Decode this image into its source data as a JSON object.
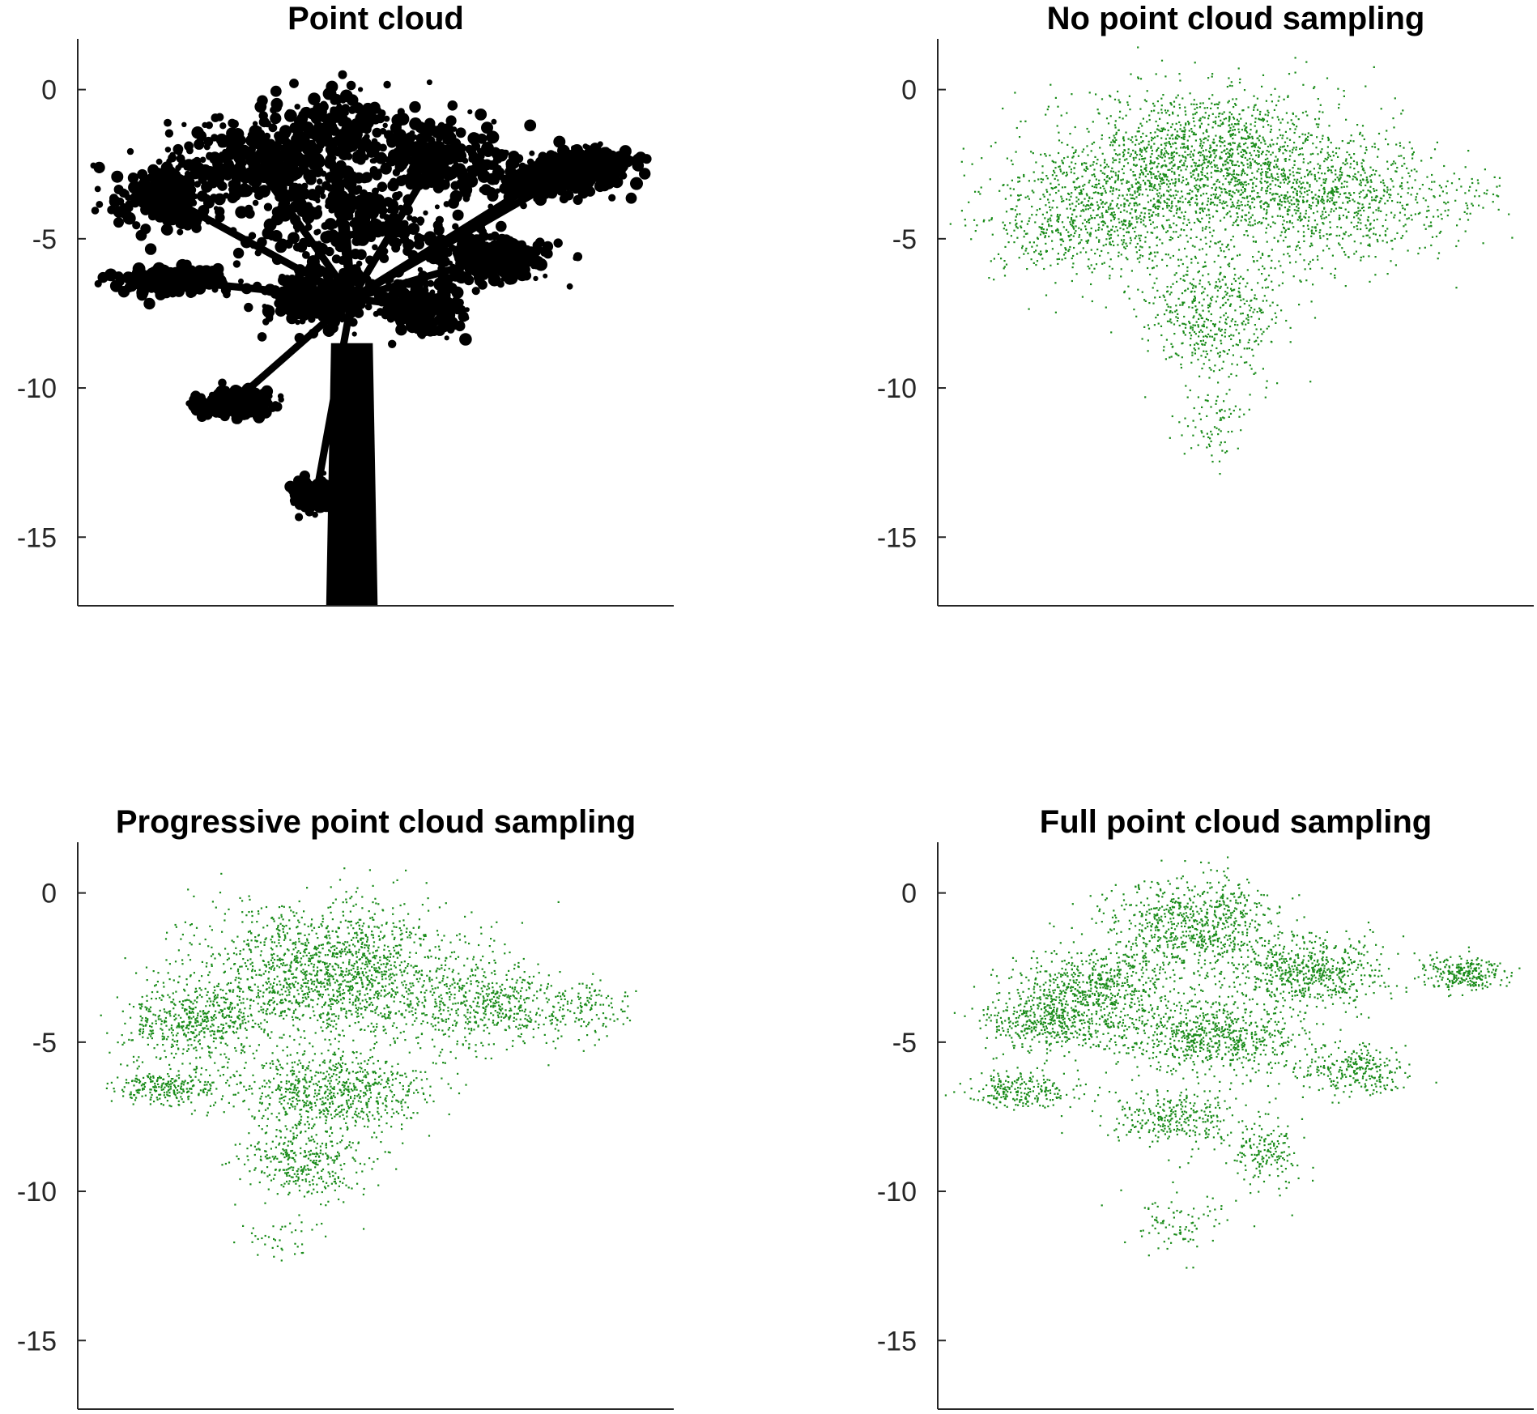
{
  "chart_data": [
    {
      "type": "scatter",
      "title": "Point cloud",
      "xlabel": "",
      "ylabel": "",
      "ylim": [
        -17.3,
        1.7
      ],
      "yticks": [
        0,
        -5,
        -10,
        -15
      ],
      "yticklabels": [
        "0",
        "-5",
        "-10",
        "-15"
      ],
      "xticks": [],
      "grid": false,
      "legend": "none",
      "marker_color": "#000000",
      "description_kind": "dense point cloud of a tree silhouette",
      "series": [
        {
          "shape": "tree",
          "trunk": {
            "x_center": 0.46,
            "x_halfwidth": 0.035,
            "y_top": -8.5,
            "y_bottom": -17.3
          },
          "crown_clusters": [
            {
              "cx": 0.42,
              "cy": -1.5,
              "rx": 0.14,
              "ry": 1.6
            },
            {
              "cx": 0.3,
              "cy": -2.5,
              "rx": 0.14,
              "ry": 1.4
            },
            {
              "cx": 0.6,
              "cy": -2.3,
              "rx": 0.13,
              "ry": 1.4
            },
            {
              "cx": 0.15,
              "cy": -3.6,
              "rx": 0.1,
              "ry": 1.2
            },
            {
              "cx": 0.78,
              "cy": -3.0,
              "rx": 0.12,
              "ry": 0.7
            },
            {
              "cx": 0.86,
              "cy": -2.4,
              "rx": 0.07,
              "ry": 0.5
            },
            {
              "cx": 0.45,
              "cy": -4.5,
              "rx": 0.18,
              "ry": 1.6
            },
            {
              "cx": 0.16,
              "cy": -6.4,
              "rx": 0.09,
              "ry": 0.5
            },
            {
              "cx": 0.7,
              "cy": -5.6,
              "rx": 0.1,
              "ry": 0.8
            },
            {
              "cx": 0.58,
              "cy": -7.3,
              "rx": 0.08,
              "ry": 1.0
            },
            {
              "cx": 0.4,
              "cy": -7.0,
              "rx": 0.1,
              "ry": 1.1
            },
            {
              "cx": 0.26,
              "cy": -10.5,
              "rx": 0.07,
              "ry": 0.5
            },
            {
              "cx": 0.4,
              "cy": -13.6,
              "rx": 0.04,
              "ry": 0.5
            }
          ]
        }
      ]
    },
    {
      "type": "scatter",
      "title": "No point cloud sampling",
      "xlabel": "",
      "ylabel": "",
      "ylim": [
        -17.3,
        1.7
      ],
      "yticks": [
        0,
        -5,
        -10,
        -15
      ],
      "yticklabels": [
        "0",
        "-5",
        "-10",
        "-15"
      ],
      "xticks": [],
      "grid": false,
      "legend": "none",
      "marker_color": "#1a8c1a",
      "series": [
        {
          "shape": "sparse",
          "clusters": [
            {
              "cx": 0.45,
              "cy": -2.5,
              "rx": 0.24,
              "ry": 2.6,
              "n": 1800
            },
            {
              "cx": 0.25,
              "cy": -4.3,
              "rx": 0.18,
              "ry": 2.2,
              "n": 700
            },
            {
              "cx": 0.68,
              "cy": -3.8,
              "rx": 0.2,
              "ry": 2.0,
              "n": 700
            },
            {
              "cx": 0.46,
              "cy": -7.5,
              "rx": 0.12,
              "ry": 2.2,
              "n": 500
            },
            {
              "cx": 0.46,
              "cy": -11.2,
              "rx": 0.05,
              "ry": 1.3,
              "n": 80
            },
            {
              "cx": 0.9,
              "cy": -3.5,
              "rx": 0.06,
              "ry": 1.2,
              "n": 40
            }
          ]
        }
      ]
    },
    {
      "type": "scatter",
      "title": "Progressive point cloud sampling",
      "xlabel": "",
      "ylabel": "",
      "ylim": [
        -17.3,
        1.7
      ],
      "yticks": [
        0,
        -5,
        -10,
        -15
      ],
      "yticklabels": [
        "0",
        "-5",
        "-10",
        "-15"
      ],
      "xticks": [],
      "grid": false,
      "legend": "none",
      "marker_color": "#1a8c1a",
      "series": [
        {
          "shape": "sparse",
          "clusters": [
            {
              "cx": 0.42,
              "cy": -2.6,
              "rx": 0.22,
              "ry": 2.3,
              "n": 1600
            },
            {
              "cx": 0.2,
              "cy": -4.3,
              "rx": 0.12,
              "ry": 1.4,
              "n": 500
            },
            {
              "cx": 0.68,
              "cy": -3.8,
              "rx": 0.14,
              "ry": 1.5,
              "n": 500
            },
            {
              "cx": 0.85,
              "cy": -3.8,
              "rx": 0.07,
              "ry": 1.0,
              "n": 120
            },
            {
              "cx": 0.15,
              "cy": -6.5,
              "rx": 0.1,
              "ry": 0.6,
              "n": 260
            },
            {
              "cx": 0.43,
              "cy": -6.6,
              "rx": 0.16,
              "ry": 1.3,
              "n": 700
            },
            {
              "cx": 0.38,
              "cy": -9.0,
              "rx": 0.1,
              "ry": 1.2,
              "n": 350
            },
            {
              "cx": 0.33,
              "cy": -11.6,
              "rx": 0.08,
              "ry": 0.8,
              "n": 40
            }
          ]
        }
      ]
    },
    {
      "type": "scatter",
      "title": "Full point cloud sampling",
      "xlabel": "",
      "ylabel": "",
      "ylim": [
        -17.3,
        1.7
      ],
      "yticks": [
        0,
        -5,
        -10,
        -15
      ],
      "yticklabels": [
        "0",
        "-5",
        "-10",
        "-15"
      ],
      "xticks": [],
      "grid": false,
      "legend": "none",
      "marker_color": "#1a8c1a",
      "series": [
        {
          "shape": "sparse",
          "clusters": [
            {
              "cx": 0.43,
              "cy": -1.0,
              "rx": 0.14,
              "ry": 1.6,
              "n": 700
            },
            {
              "cx": 0.27,
              "cy": -3.2,
              "rx": 0.14,
              "ry": 1.4,
              "n": 600
            },
            {
              "cx": 0.62,
              "cy": -2.6,
              "rx": 0.14,
              "ry": 1.3,
              "n": 600
            },
            {
              "cx": 0.88,
              "cy": -2.7,
              "rx": 0.07,
              "ry": 0.6,
              "n": 250
            },
            {
              "cx": 0.18,
              "cy": -4.3,
              "rx": 0.1,
              "ry": 1.0,
              "n": 400
            },
            {
              "cx": 0.45,
              "cy": -4.8,
              "rx": 0.16,
              "ry": 1.2,
              "n": 700
            },
            {
              "cx": 0.14,
              "cy": -6.6,
              "rx": 0.09,
              "ry": 0.6,
              "n": 220
            },
            {
              "cx": 0.7,
              "cy": -5.9,
              "rx": 0.1,
              "ry": 0.8,
              "n": 260
            },
            {
              "cx": 0.4,
              "cy": -7.5,
              "rx": 0.12,
              "ry": 1.0,
              "n": 300
            },
            {
              "cx": 0.55,
              "cy": -8.8,
              "rx": 0.06,
              "ry": 1.1,
              "n": 160
            },
            {
              "cx": 0.4,
              "cy": -11.0,
              "rx": 0.08,
              "ry": 1.2,
              "n": 90
            }
          ]
        }
      ]
    }
  ]
}
